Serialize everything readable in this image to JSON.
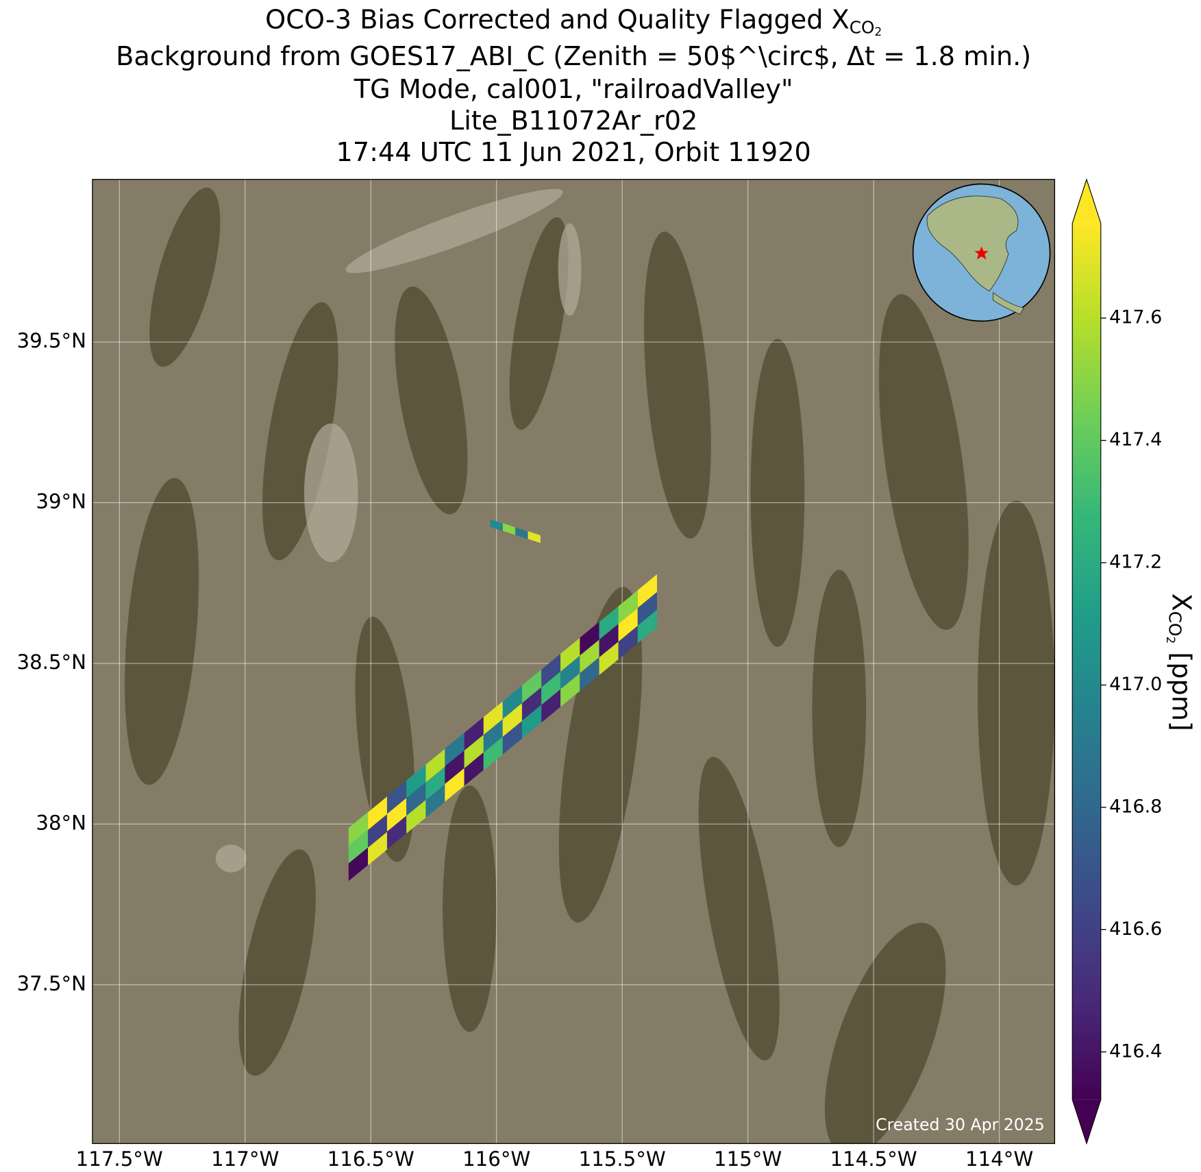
{
  "chart_data": {
    "type": "map",
    "title": [
      "OCO-3 Bias Corrected and Quality Flagged X",
      "CO",
      "2"
    ],
    "subtitle": [
      "Background from GOES17_ABI_C (Zenith = 50$^\\circ$, Δt =  1.8 min.)",
      "TG Mode, cal001, \"railroadValley\"",
      "Lite_B11072Ar_r02",
      "17:44 UTC 11 Jun 2021, Orbit 11920"
    ],
    "annotation": "Created 30 Apr 2025",
    "x": [
      -116.55,
      -116.473,
      -116.397,
      -116.32,
      -116.243,
      -116.167,
      -116.09,
      -116.013,
      -115.937,
      -115.86,
      -115.783,
      -115.707,
      -115.63,
      -115.553,
      -115.477,
      -115.4,
      -116.55,
      -116.473,
      -116.397,
      -116.32,
      -116.243,
      -116.167,
      -116.09,
      -116.013,
      -115.937,
      -115.86,
      -115.783,
      -115.707,
      -115.63,
      -115.553,
      -115.477,
      -115.4,
      -116.55,
      -116.473,
      -116.397,
      -116.32,
      -116.243,
      -116.167,
      -116.09,
      -116.013,
      -115.937,
      -115.86,
      -115.783,
      -115.707,
      -115.63,
      -115.553,
      -115.477,
      -115.4,
      -116.0,
      -115.95,
      -115.9,
      -115.85
    ],
    "y": [
      37.875,
      37.924,
      37.974,
      38.023,
      38.072,
      38.122,
      38.171,
      38.22,
      38.269,
      38.319,
      38.368,
      38.417,
      38.467,
      38.516,
      38.565,
      38.615,
      37.93,
      37.979,
      38.029,
      38.078,
      38.127,
      38.177,
      38.226,
      38.275,
      38.324,
      38.374,
      38.423,
      38.472,
      38.522,
      38.571,
      38.62,
      38.67,
      37.985,
      38.034,
      38.084,
      38.133,
      38.182,
      38.232,
      38.281,
      38.33,
      38.379,
      38.429,
      38.478,
      38.527,
      38.577,
      38.626,
      38.675,
      38.725,
      38.93,
      38.918,
      38.905,
      38.893
    ],
    "values": [
      416.35,
      417.7,
      416.5,
      417.6,
      416.9,
      417.75,
      416.4,
      417.3,
      416.7,
      417.1,
      416.45,
      417.5,
      416.8,
      417.65,
      416.6,
      417.2,
      417.4,
      416.6,
      417.75,
      416.8,
      417.2,
      416.4,
      417.6,
      416.9,
      417.7,
      416.5,
      417.3,
      416.95,
      417.55,
      416.4,
      417.75,
      416.7,
      417.5,
      417.75,
      416.7,
      417.1,
      417.6,
      416.9,
      416.45,
      417.7,
      417.0,
      417.4,
      416.65,
      417.6,
      416.35,
      417.2,
      417.5,
      417.75,
      417.0,
      417.5,
      416.9,
      417.7
    ],
    "xlim": [
      -117.607,
      -113.78
    ],
    "ylim": [
      37.006,
      40.006
    ],
    "xticks": [
      {
        "value": -117.5,
        "label": "117.5°W"
      },
      {
        "value": -117,
        "label": "117°W"
      },
      {
        "value": -116.5,
        "label": "116.5°W"
      },
      {
        "value": -116,
        "label": "116°W"
      },
      {
        "value": -115.5,
        "label": "115.5°W"
      },
      {
        "value": -115,
        "label": "115°W"
      },
      {
        "value": -114.5,
        "label": "114.5°W"
      },
      {
        "value": -114,
        "label": "114°W"
      }
    ],
    "yticks": [
      {
        "value": 37.5,
        "label": "37.5°N"
      },
      {
        "value": 38,
        "label": "38°N"
      },
      {
        "value": 38.5,
        "label": "38.5°N"
      },
      {
        "value": 39,
        "label": "39°N"
      },
      {
        "value": 39.5,
        "label": "39.5°N"
      }
    ],
    "grid": true,
    "colorbar": {
      "colormap": "viridis",
      "clim": [
        416.322,
        417.755
      ],
      "ticks": [
        416.4,
        416.6,
        416.8,
        {
          "value": 417,
          "label": "417.0"
        },
        417.2,
        417.4,
        417.6
      ],
      "label": [
        "X",
        "CO",
        "2",
        " [ppm]"
      ]
    }
  }
}
